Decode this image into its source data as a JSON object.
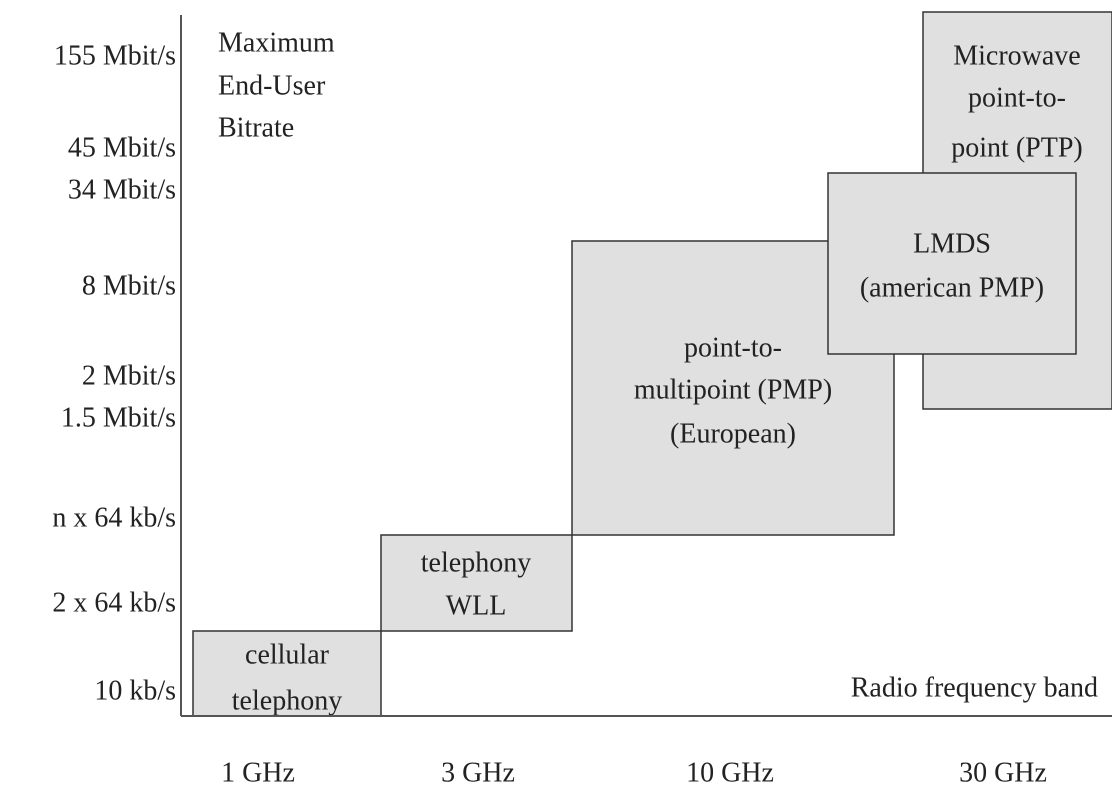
{
  "axis": {
    "title": [
      "Maximum",
      "End-User",
      "Bitrate"
    ],
    "y_labels": [
      "155 Mbit/s",
      "45 Mbit/s",
      "34 Mbit/s",
      "8 Mbit/s",
      "2 Mbit/s",
      "1.5 Mbit/s",
      "n x 64 kb/s",
      "2 x 64 kb/s",
      "10 kb/s"
    ],
    "x_title": "Radio frequency band",
    "x_labels": [
      "1 GHz",
      "3 GHz",
      "10 GHz",
      "30 GHz"
    ]
  },
  "boxes": [
    {
      "lines": [
        "cellular",
        "telephony"
      ]
    },
    {
      "lines": [
        "telephony",
        "WLL"
      ]
    },
    {
      "lines": [
        "point-to-",
        "multipoint (PMP)",
        "(European)"
      ]
    },
    {
      "lines": [
        "Microwave",
        "point-to-",
        "point (PTP)"
      ]
    },
    {
      "lines": [
        "LMDS",
        "(american PMP)"
      ]
    }
  ]
}
